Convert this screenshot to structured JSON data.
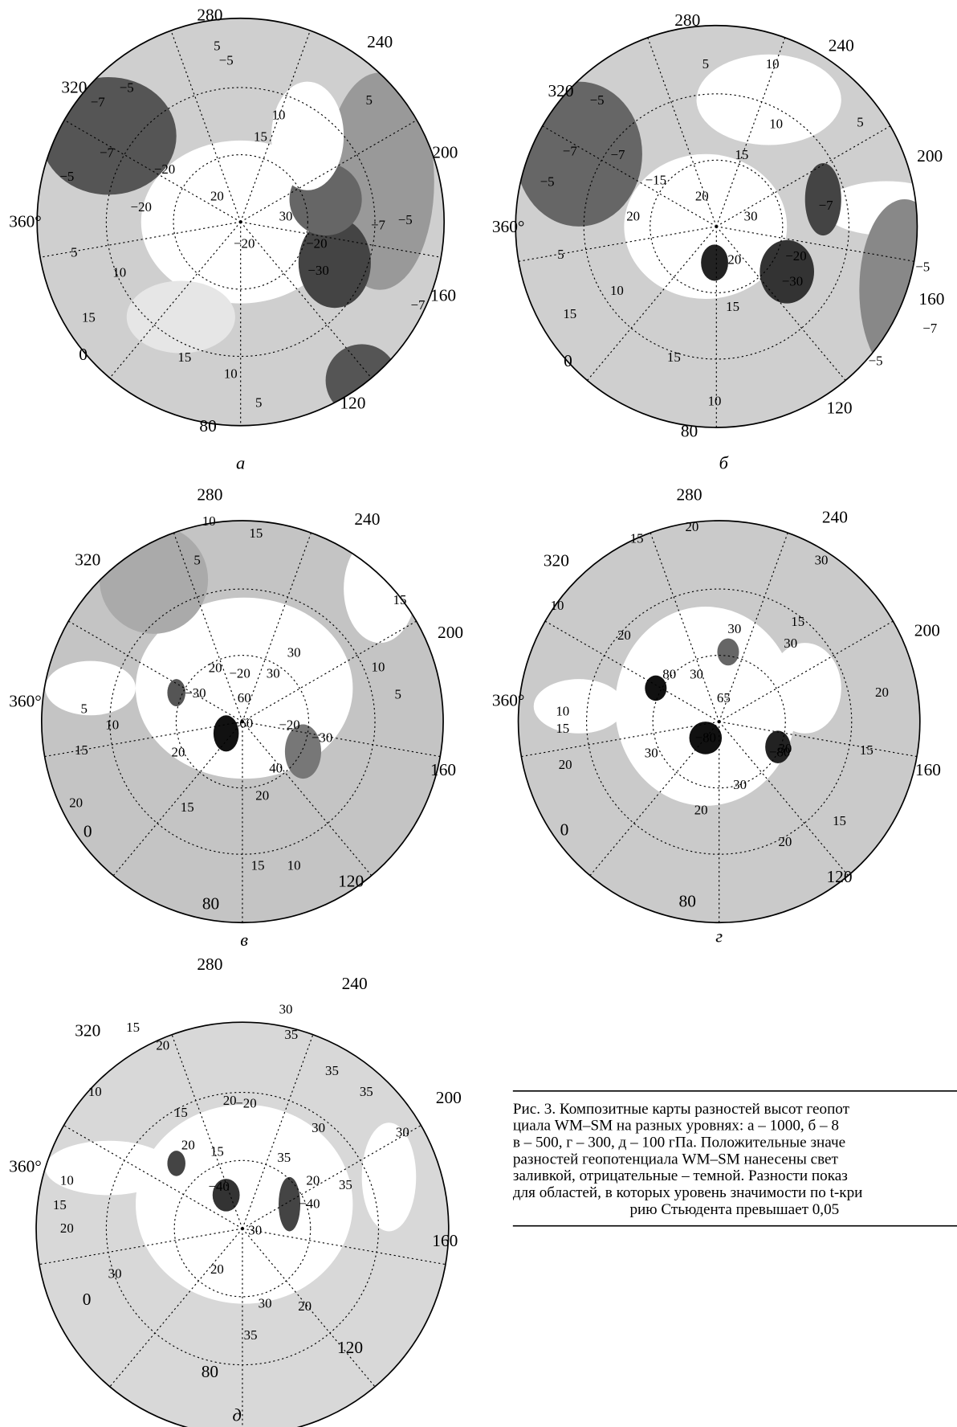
{
  "panels": [
    {
      "letter": "а",
      "longitudes": [
        "280",
        "240",
        "320",
        "200",
        "360°",
        "160",
        "0",
        "120",
        "80"
      ],
      "contours": [
        "5",
        "−5",
        "−5",
        "−7",
        "−7",
        "−5",
        "10",
        "15",
        "−20",
        "20",
        "−20",
        "30",
        "−20",
        "−20",
        "−30",
        "5",
        "−7",
        "−5",
        "−7",
        "5",
        "10",
        "15",
        "15",
        "10",
        "5"
      ]
    },
    {
      "letter": "б",
      "longitudes": [
        "280",
        "240",
        "320",
        "200",
        "360°",
        "160",
        "0",
        "120",
        "80"
      ],
      "contours": [
        "10",
        "5",
        "−5",
        "−7",
        "−7",
        "−5",
        "5",
        "10",
        "15",
        "−15",
        "20",
        "30",
        "20",
        "20",
        "−20",
        "−30",
        "−7",
        "−5",
        "−7",
        "−5",
        "5",
        "10",
        "15",
        "15",
        "15",
        "10"
      ]
    },
    {
      "letter": "в",
      "longitudes": [
        "280",
        "240",
        "320",
        "200",
        "360°",
        "160",
        "0",
        "120",
        "80"
      ],
      "contours": [
        "10",
        "15",
        "5",
        "15",
        "30",
        "−20",
        "20",
        "30",
        "10",
        "5",
        "5",
        "10",
        "−30",
        "60",
        "−60",
        "−20",
        "−30",
        "15",
        "20",
        "40",
        "20",
        "20",
        "15",
        "15",
        "10"
      ]
    },
    {
      "letter": "г",
      "longitudes": [
        "280",
        "240",
        "320",
        "200",
        "360°",
        "160",
        "0",
        "120",
        "80"
      ],
      "contours": [
        "20",
        "15",
        "30",
        "10",
        "20",
        "15",
        "30",
        "30",
        "80",
        "30",
        "65",
        "20",
        "10",
        "15",
        "−80",
        "30",
        "−80",
        "15",
        "20",
        "30",
        "30",
        "20",
        "15",
        "20"
      ]
    },
    {
      "letter": "д",
      "longitudes": [
        "280",
        "240",
        "320",
        "200",
        "360°",
        "160",
        "0",
        "120",
        "80"
      ],
      "contours": [
        "30",
        "15",
        "35",
        "20",
        "35",
        "35",
        "10",
        "20",
        "−20",
        "15",
        "30",
        "30",
        "20",
        "15",
        "10",
        "35",
        "15",
        "−40",
        "20",
        "35",
        "−40",
        "20",
        "30",
        "30",
        "20",
        "30",
        "20",
        "35"
      ]
    }
  ],
  "caption": {
    "lines": [
      "Рис. 3. Композитные карты разностей высот геопот",
      "циала WM–SM на разных уровнях: а – 1000, б – 8",
      "в – 500, г – 300, д – 100 гПа. Положительные значе",
      "разностей геопотенциала WM–SM нанесены свет",
      "заливкой, отрицательные – темной. Разности показ",
      "для областей, в которых уровень значимости по t-кри",
      "рию Стьюдента превышает 0,05"
    ]
  }
}
